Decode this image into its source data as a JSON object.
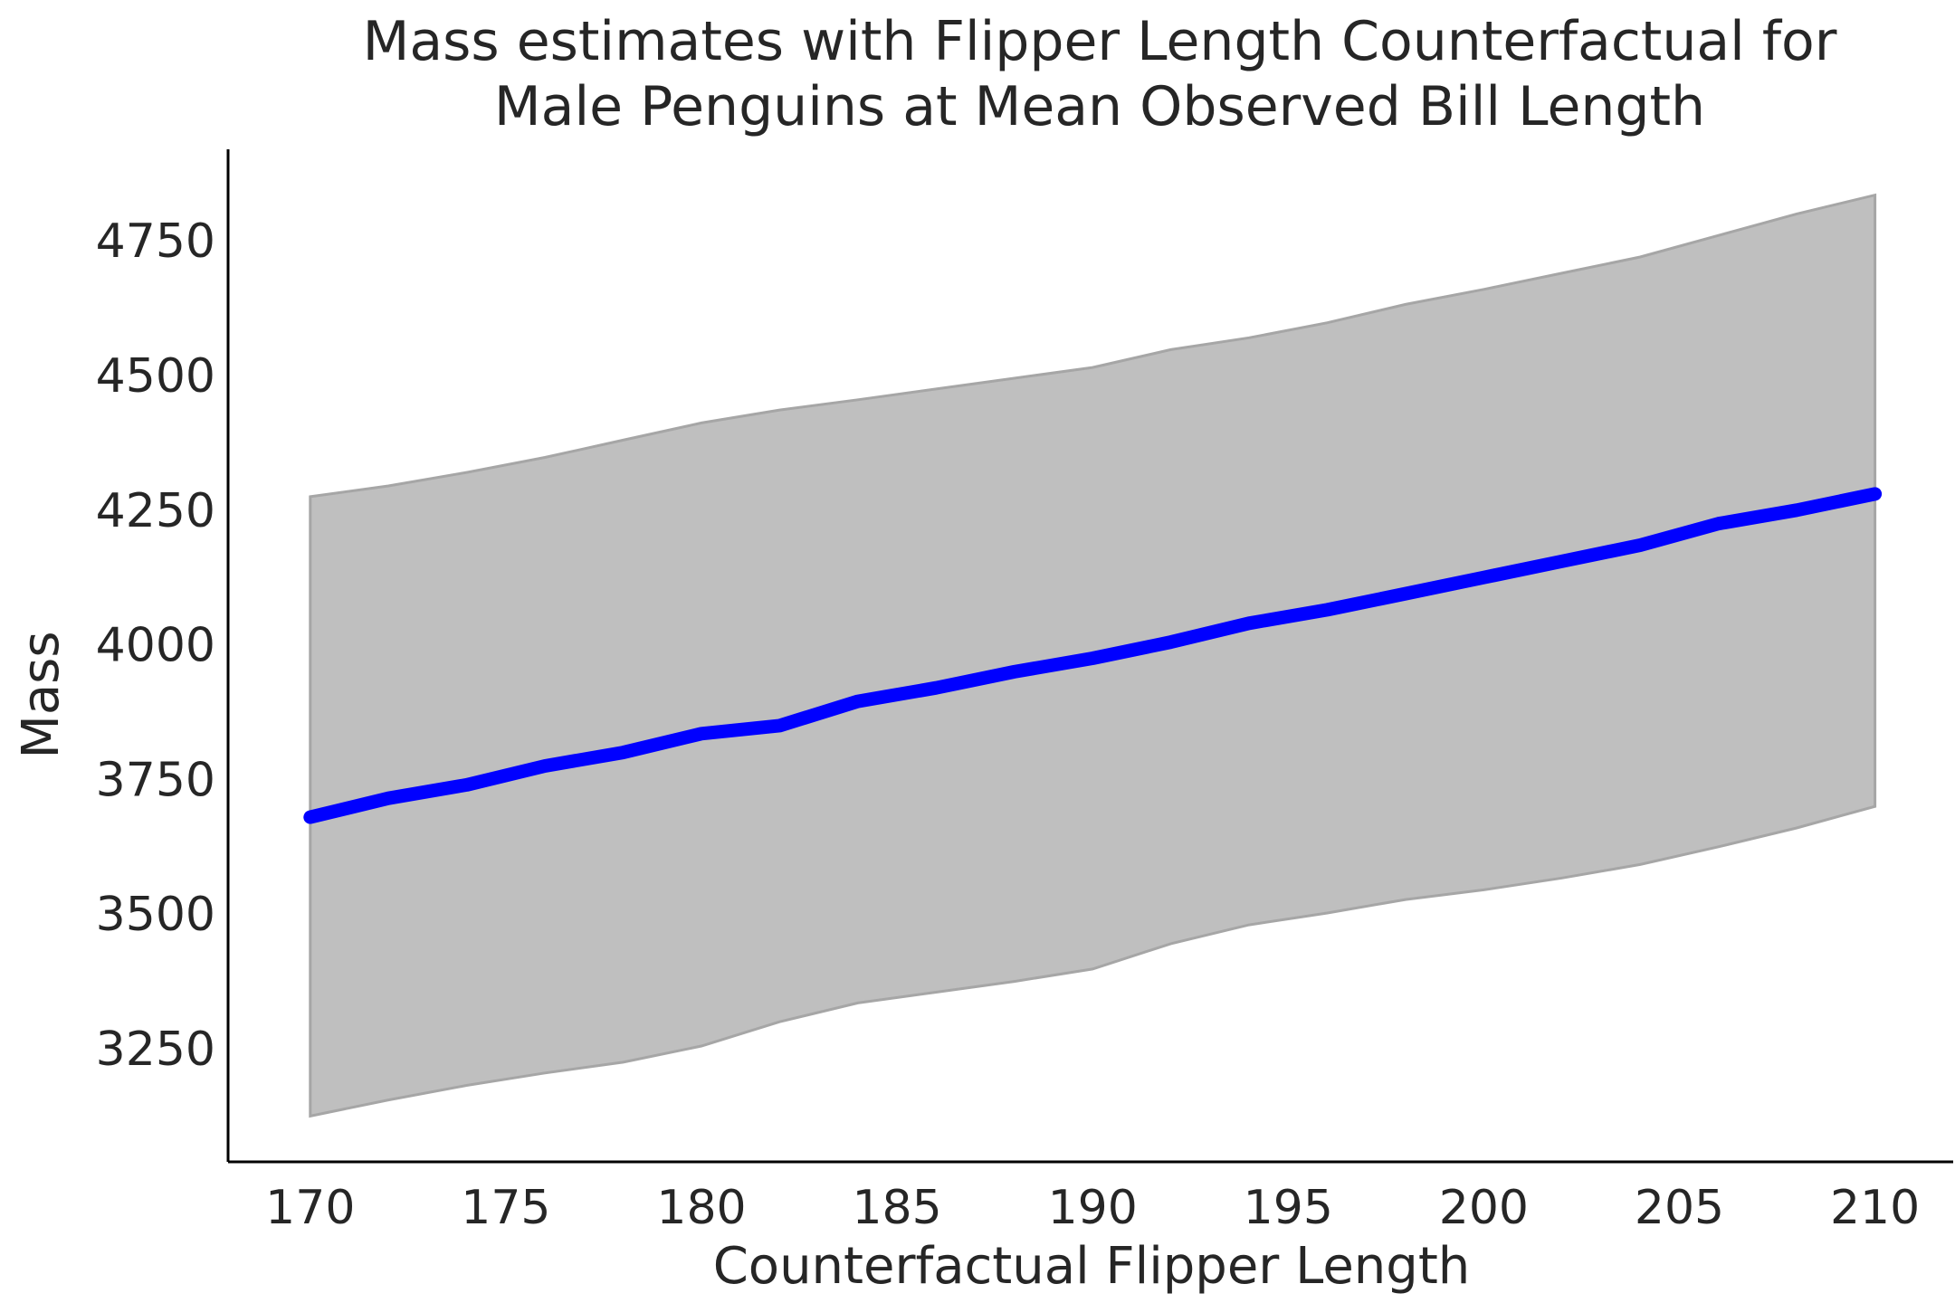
{
  "chart_data": {
    "type": "line",
    "title_lines": [
      "Mass estimates with Flipper Length Counterfactual for",
      "Male Penguins at Mean Observed Bill Length"
    ],
    "xlabel": "Counterfactual Flipper Length",
    "ylabel": "Mass",
    "xlim": [
      167.9,
      212.0
    ],
    "ylim": [
      3040,
      4920
    ],
    "xticks": [
      170,
      175,
      180,
      185,
      190,
      195,
      200,
      205,
      210
    ],
    "yticks": [
      3250,
      3500,
      3750,
      4000,
      4250,
      4500,
      4750
    ],
    "grid": false,
    "x": [
      170,
      172,
      174,
      176,
      178,
      180,
      182,
      184,
      186,
      188,
      190,
      192,
      194,
      196,
      198,
      200,
      202,
      204,
      206,
      208,
      210
    ],
    "mean": [
      3680,
      3715,
      3740,
      3775,
      3800,
      3835,
      3850,
      3895,
      3920,
      3950,
      3975,
      4005,
      4040,
      4065,
      4095,
      4125,
      4155,
      4185,
      4225,
      4250,
      4280
    ],
    "band_upper": [
      4275,
      4295,
      4320,
      4348,
      4380,
      4412,
      4436,
      4455,
      4475,
      4495,
      4515,
      4548,
      4570,
      4598,
      4632,
      4660,
      4690,
      4720,
      4760,
      4800,
      4835
    ],
    "band_lower": [
      3125,
      3155,
      3182,
      3205,
      3225,
      3255,
      3300,
      3335,
      3355,
      3375,
      3398,
      3445,
      3480,
      3502,
      3527,
      3545,
      3567,
      3592,
      3625,
      3660,
      3700
    ],
    "colors": {
      "line": "#0000ff",
      "band_fill": "#bfbfbf",
      "band_edge": "#a6a6a6",
      "axis": "#000000"
    }
  }
}
